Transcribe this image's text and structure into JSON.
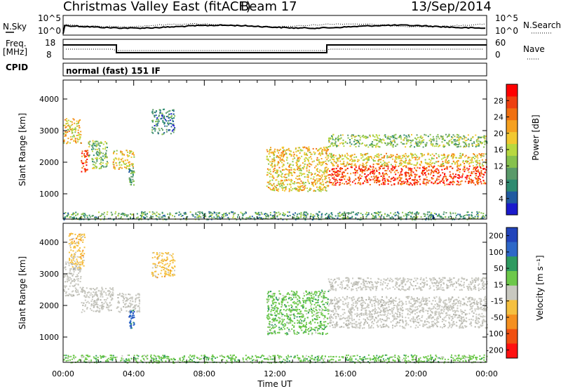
{
  "header": {
    "station": "Christmas Valley East (fitACF)",
    "beam": "Beam 17",
    "date": "13/Sep/2014"
  },
  "status_panels": {
    "nsky_label": "N.Sky",
    "nsky_ticks": [
      "10^5",
      "10^0"
    ],
    "nsearch_label": "N.Search",
    "nsearch_ticks": [
      "10^5",
      "10^0"
    ],
    "freq_label_1": "Freq.",
    "freq_label_2": "[MHz]",
    "freq_ticks": [
      "18",
      "8"
    ],
    "nave_label": "Nave",
    "nave_ticks": [
      "60",
      "0"
    ],
    "cpid_label": "CPID",
    "cpid_value": "normal (fast) 151 IF"
  },
  "chart_data": [
    {
      "type": "heatmap",
      "name": "power",
      "xlabel": "Time UT",
      "ylabel": "Slant Range [km]",
      "xlim": [
        0,
        24
      ],
      "ylim": [
        200,
        4600
      ],
      "x_tick_labels": [
        "00:00",
        "04:00",
        "08:00",
        "12:00",
        "16:00",
        "20:00",
        "00:00"
      ],
      "y_ticks": [
        1000,
        2000,
        3000,
        4000
      ],
      "colorbar": {
        "label": "Power [dB]",
        "ticks": [
          4,
          8,
          12,
          16,
          20,
          24,
          28
        ],
        "range": [
          0,
          32
        ],
        "colors": [
          "#1a1acc",
          "#205aa0",
          "#2e8a70",
          "#5a9a6a",
          "#86c14e",
          "#b8d840",
          "#f2c830",
          "#f5a020",
          "#f07010",
          "#ee4010",
          "#ff0000"
        ]
      },
      "features": [
        {
          "t": [
            0.0,
            1.0
          ],
          "r": [
            2600,
            3400
          ],
          "v": 20
        },
        {
          "t": [
            1.0,
            1.4
          ],
          "r": [
            1700,
            2400
          ],
          "v": 28
        },
        {
          "t": [
            1.4,
            2.5
          ],
          "r": [
            1800,
            2700
          ],
          "v": 14
        },
        {
          "t": [
            2.8,
            4.0
          ],
          "r": [
            1800,
            2400
          ],
          "v": 18
        },
        {
          "t": [
            3.7,
            4.0
          ],
          "r": [
            1300,
            1900
          ],
          "v": 8
        },
        {
          "t": [
            5.0,
            6.3
          ],
          "r": [
            2900,
            3700
          ],
          "v": 6
        },
        {
          "t": [
            11.5,
            15.0
          ],
          "r": [
            1100,
            2500
          ],
          "v": 18
        },
        {
          "t": [
            15.0,
            24.0
          ],
          "r": [
            1300,
            1900
          ],
          "v": 28
        },
        {
          "t": [
            15.0,
            24.0
          ],
          "r": [
            1900,
            2300
          ],
          "v": 18
        },
        {
          "t": [
            15.0,
            24.0
          ],
          "r": [
            2500,
            2900
          ],
          "v": 14
        },
        {
          "t": [
            0.0,
            24.0
          ],
          "r": [
            200,
            450
          ],
          "v": 8
        }
      ]
    },
    {
      "type": "heatmap",
      "name": "velocity",
      "xlabel": "Time UT",
      "ylabel": "Slant Range [km]",
      "xlim": [
        0,
        24
      ],
      "ylim": [
        200,
        4600
      ],
      "x_tick_labels": [
        "00:00",
        "04:00",
        "08:00",
        "12:00",
        "16:00",
        "20:00",
        "00:00"
      ],
      "y_ticks": [
        1000,
        2000,
        3000,
        4000
      ],
      "colorbar": {
        "label": "Velocity [m s⁻¹]",
        "ticks": [
          "200",
          "100",
          "50",
          "15",
          "-15",
          "-50",
          "-100",
          "-200"
        ],
        "colors": [
          "#2244bb",
          "#2d68c8",
          "#2e9a60",
          "#6dc84a",
          "#c8c8c0",
          "#f5c040",
          "#f59020",
          "#f05010",
          "#ff1010"
        ]
      },
      "features": [
        {
          "t": [
            0.0,
            1.0
          ],
          "r": [
            2300,
            3400
          ],
          "v": "ground"
        },
        {
          "t": [
            0.3,
            1.2
          ],
          "r": [
            3200,
            4300
          ],
          "v": -50
        },
        {
          "t": [
            1.0,
            2.8
          ],
          "r": [
            1800,
            2600
          ],
          "v": "ground"
        },
        {
          "t": [
            3.0,
            4.3
          ],
          "r": [
            1800,
            2400
          ],
          "v": "ground"
        },
        {
          "t": [
            3.7,
            4.0
          ],
          "r": [
            1300,
            1900
          ],
          "v": 100
        },
        {
          "t": [
            5.0,
            6.3
          ],
          "r": [
            2900,
            3700
          ],
          "v": -50
        },
        {
          "t": [
            11.5,
            15.0
          ],
          "r": [
            1100,
            2500
          ],
          "v": 50
        },
        {
          "t": [
            15.0,
            24.0
          ],
          "r": [
            1300,
            2300
          ],
          "v": "ground"
        },
        {
          "t": [
            15.0,
            24.0
          ],
          "r": [
            2500,
            2900
          ],
          "v": "ground"
        },
        {
          "t": [
            0.0,
            24.0
          ],
          "r": [
            200,
            450
          ],
          "v": 50
        }
      ]
    }
  ]
}
